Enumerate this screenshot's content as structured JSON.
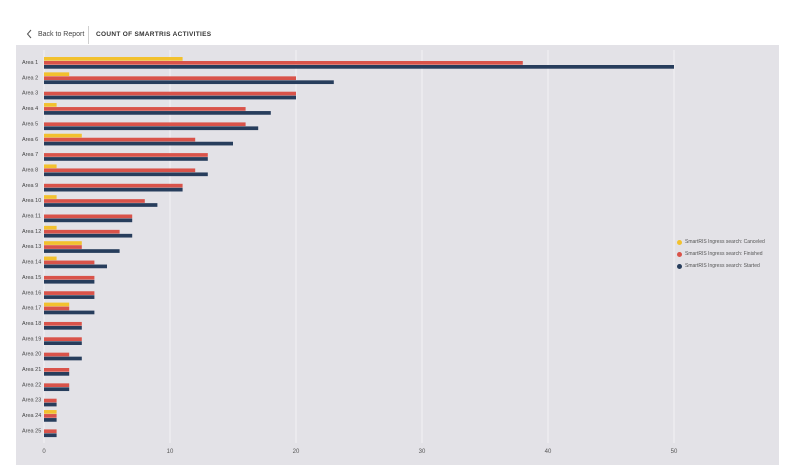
{
  "header": {
    "back_label": "Back to Report",
    "title": "COUNT OF SMARTRIS ACTIVITIES"
  },
  "colors": {
    "canceled": "#f2c12e",
    "finished": "#d9534a",
    "started": "#273d5c",
    "chart_bg": "#e3e2e7",
    "grid": "#f3f3f5"
  },
  "legend": [
    {
      "label": "SmartRIS Ingress search: Canceled",
      "color": "#f2c12e"
    },
    {
      "label": "SmartRIS Ingress search: Finished",
      "color": "#d9534a"
    },
    {
      "label": "SmartRIS Ingress search: Started",
      "color": "#273d5c"
    }
  ],
  "chart_data": {
    "type": "bar",
    "orientation": "horizontal",
    "categories": [
      "Area 1",
      "Area 2",
      "Area 3",
      "Area 4",
      "Area 5",
      "Area 6",
      "Area 7",
      "Area 8",
      "Area 9",
      "Area 10",
      "Area 11",
      "Area 12",
      "Area 13",
      "Area 14",
      "Area 15",
      "Area 16",
      "Area 17",
      "Area 18",
      "Area 19",
      "Area 20",
      "Area 21",
      "Area 22",
      "Area 23",
      "Area 24",
      "Area 25"
    ],
    "series": [
      {
        "name": "SmartRIS Ingress search: Canceled",
        "values": [
          11,
          2,
          0,
          1,
          0,
          3,
          0,
          1,
          0,
          1,
          0,
          1,
          3,
          1,
          0,
          0,
          2,
          0,
          0,
          0,
          0,
          0,
          0,
          1,
          0
        ]
      },
      {
        "name": "SmartRIS Ingress search: Finished",
        "values": [
          38,
          20,
          20,
          16,
          16,
          12,
          13,
          12,
          11,
          8,
          7,
          6,
          3,
          4,
          4,
          4,
          2,
          3,
          3,
          2,
          2,
          2,
          1,
          1,
          1
        ]
      },
      {
        "name": "SmartRIS Ingress search: Started",
        "values": [
          50,
          23,
          20,
          18,
          17,
          15,
          13,
          13,
          11,
          9,
          7,
          7,
          6,
          5,
          4,
          4,
          4,
          3,
          3,
          3,
          2,
          2,
          1,
          1,
          1
        ]
      }
    ],
    "xlim": [
      0,
      58
    ],
    "xticks": [
      0,
      10,
      20,
      30,
      40,
      50
    ],
    "grid": true,
    "legend_position": "right"
  }
}
